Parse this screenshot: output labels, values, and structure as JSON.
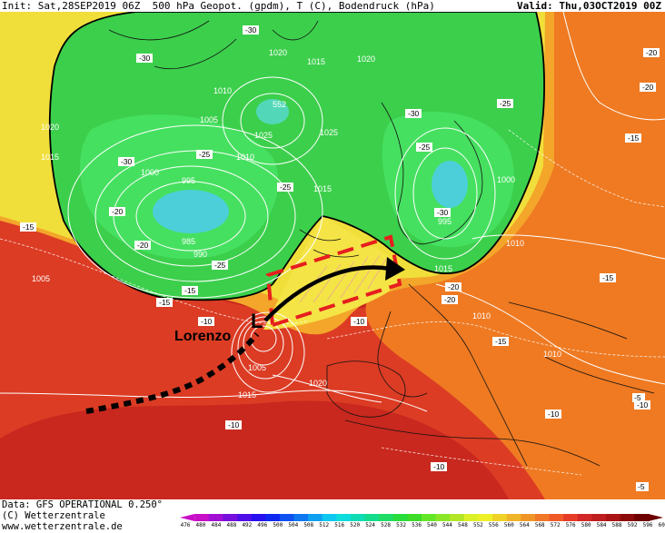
{
  "header": {
    "init_text": "Init: Sat,28SEP2019 06Z",
    "params_text": "500 hPa Geopot. (gpdm), T (C), Bodendruck (hPa)",
    "valid_text": "Valid: Thu,03OCT2019 00Z"
  },
  "map": {
    "storm_marker": "L",
    "storm_name": "Lorenzo",
    "pressure_labels": [
      "1020",
      "1015",
      "1010",
      "1005",
      "1000",
      "995",
      "990",
      "985",
      "1025",
      "1020",
      "1015",
      "1010",
      "1005",
      "1000",
      "995",
      "1025",
      "1015",
      "1010",
      "1020",
      "1015",
      "1010",
      "1005",
      "1020",
      "1015",
      "1010"
    ],
    "geopot_labels": [
      "552"
    ],
    "temp_labels": [
      "-30",
      "-30",
      "-25",
      "-30",
      "-20",
      "-25",
      "-25",
      "-30",
      "-25",
      "-30",
      "-25",
      "-20",
      "-15",
      "-15",
      "-20",
      "-10",
      "-15",
      "-15",
      "-10",
      "-20",
      "-15",
      "-10",
      "-10",
      "-10",
      "-10",
      "-5",
      "-5",
      "-20",
      "-15",
      "-20"
    ],
    "colors": {
      "deep_red": "#c8281e",
      "red": "#e0412a",
      "orange": "#f07d1e",
      "yellow_orange": "#f5b41e",
      "yellow": "#f5e632",
      "green": "#32d250",
      "bright_green": "#46e65a",
      "cyan": "#3cc8dc",
      "arrow_dash_red": "#e61e1e"
    }
  },
  "footer": {
    "data_text": "Data: GFS OPERATIONAL  0.250°",
    "copyright_text": "(C) Wetterzentrale",
    "url_text": "www.wetterzentrale.de"
  },
  "colorbar": {
    "ticks": [
      "476",
      "480",
      "484",
      "488",
      "492",
      "496",
      "500",
      "504",
      "508",
      "512",
      "516",
      "520",
      "524",
      "528",
      "532",
      "536",
      "540",
      "544",
      "548",
      "552",
      "556",
      "560",
      "564",
      "568",
      "572",
      "576",
      "580",
      "584",
      "588",
      "592",
      "596",
      "600"
    ],
    "colors": [
      "#c80fc8",
      "#a00fd2",
      "#780fdc",
      "#500fe6",
      "#280ff0",
      "#0f28f0",
      "#0f50f0",
      "#0f78f0",
      "#0fa0f0",
      "#0fc8f0",
      "#0fdcdc",
      "#0fdcb4",
      "#14dc8c",
      "#1edc64",
      "#28dc3c",
      "#3cdc28",
      "#64e628",
      "#8ce628",
      "#b4e628",
      "#dcf028",
      "#f0f028",
      "#f0d228",
      "#f0b428",
      "#f09628",
      "#f07828",
      "#f05a28",
      "#e63c28",
      "#d22828",
      "#be1e1e",
      "#aa1414",
      "#8c0a0a",
      "#6e0000"
    ]
  }
}
